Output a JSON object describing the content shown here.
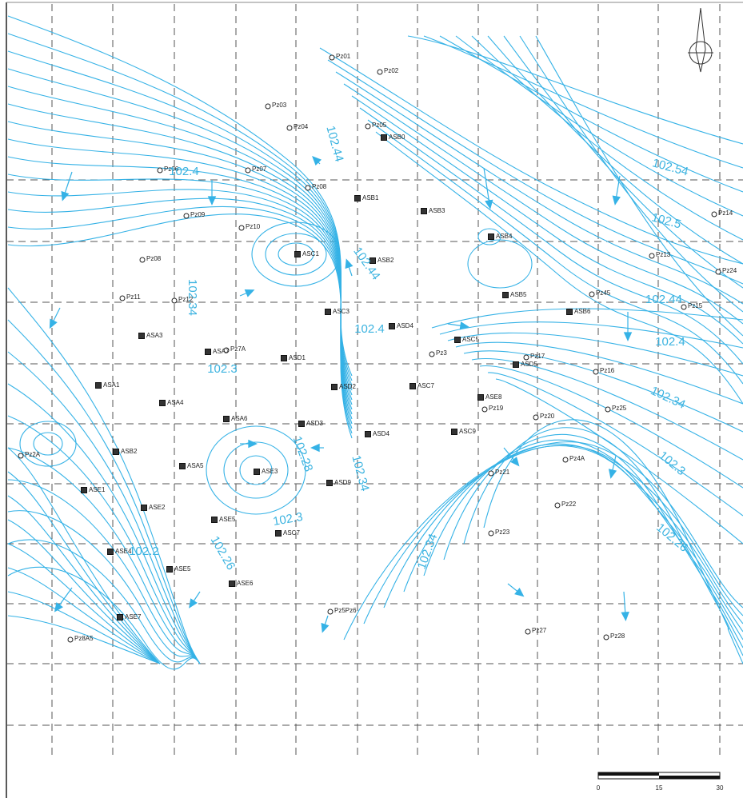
{
  "contour_labels": [
    "102.4",
    "102.44",
    "102.44",
    "102.34",
    "102.3",
    "102.4",
    "102.28",
    "102.34",
    "102.3",
    "102.2",
    "102.26",
    "102.34",
    "102.54",
    "102.5",
    "102.44",
    "102.4",
    "102.34",
    "102.3",
    "102.26"
  ],
  "piezometers": [
    "Pz01",
    "Pz02",
    "Pz03",
    "Pz04",
    "Pz05",
    "Pz06",
    "Pz07",
    "Pz09",
    "Pz08",
    "Pz10",
    "Pz08",
    "Pz11",
    "Pz12",
    "Pz7A",
    "Pz13",
    "Pz14",
    "Pz24",
    "Pz15",
    "Pz16",
    "Pz45",
    "Pz17",
    "Pz19",
    "Pz20",
    "Pz25",
    "Pz21",
    "Pz4A",
    "Pz22",
    "Pz23",
    "Pz27",
    "Pz28",
    "Pz2A",
    "Pz8A5",
    "Pz3",
    "Pz5Pz6"
  ],
  "sensors": [
    "ASB0",
    "ASB1",
    "ASB3",
    "ASB4",
    "ASC1",
    "ASB2",
    "ASB5",
    "ASB6",
    "ASC3",
    "ASD4",
    "ASC5",
    "ASD5",
    "ASA3",
    "ASA7",
    "ASD1",
    "ASA1",
    "ASA4",
    "ASD2",
    "ASC7",
    "ASE8",
    "ASA6",
    "ASD3",
    "ASD4",
    "ASC9",
    "ASB2",
    "ASE1",
    "ASA5",
    "ASE3",
    "ASD9",
    "ASE2",
    "ASE5",
    "ASC7",
    "ASE4",
    "ASE5",
    "ASE6",
    "ASE7"
  ],
  "scale_bar": {
    "ticks": [
      "0",
      "15",
      "30"
    ]
  }
}
